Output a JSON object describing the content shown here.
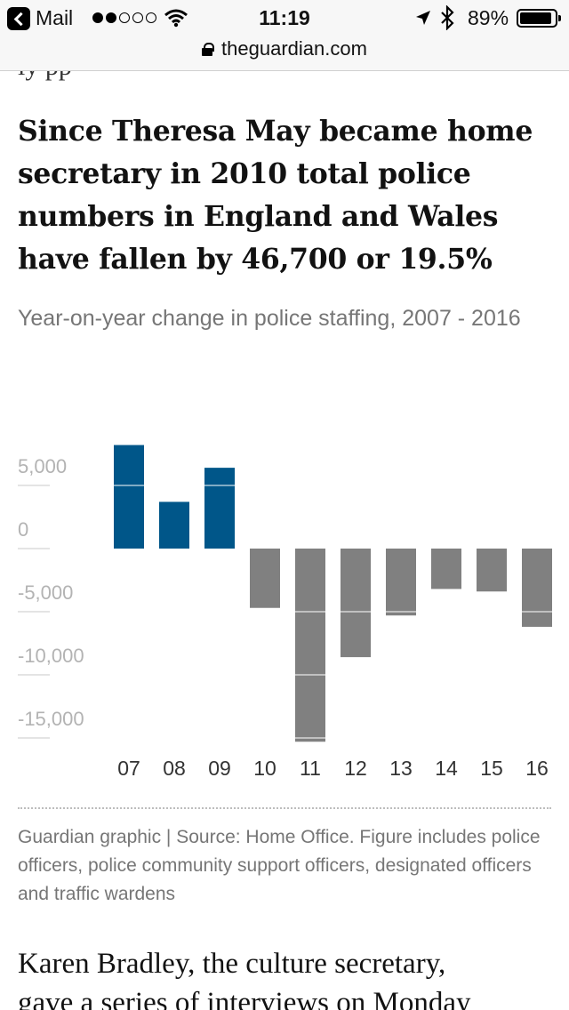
{
  "status_bar": {
    "app_name": "Mail",
    "time": "11:19",
    "battery": "89%"
  },
  "browser": {
    "url": "theguardian.com"
  },
  "article": {
    "cut_text": "ly pp",
    "headline": "Since Theresa May became home secretary in 2010 total police numbers in England and Wales have fallen by 46,700 or 19.5%",
    "subtitle": "Year-on-year change in police staffing, 2007 - 2016",
    "caption": "Guardian graphic | Source: Home Office. Figure includes police officers, police community support officers, designated officers and traffic wardens",
    "body_line1": "Karen Bradley, the culture secretary,",
    "body_line2": "gave a series of interviews on Monday"
  },
  "chart_data": {
    "type": "bar",
    "categories": [
      "07",
      "08",
      "09",
      "10",
      "11",
      "12",
      "13",
      "14",
      "15",
      "16"
    ],
    "values": [
      8200,
      3700,
      6400,
      -4700,
      -15300,
      -8600,
      -5300,
      -3200,
      -3400,
      -6200
    ],
    "colors": {
      "positive": "#005689",
      "negative": "#808080"
    },
    "yticks": [
      {
        "value": 5000,
        "label": "5,000"
      },
      {
        "value": 0,
        "label": "0"
      },
      {
        "value": -5000,
        "label": "-5,000"
      },
      {
        "value": -10000,
        "label": "-10,000"
      },
      {
        "value": -15000,
        "label": "-15,000"
      }
    ],
    "ylim": [
      -15500,
      9000
    ],
    "grid": true
  }
}
